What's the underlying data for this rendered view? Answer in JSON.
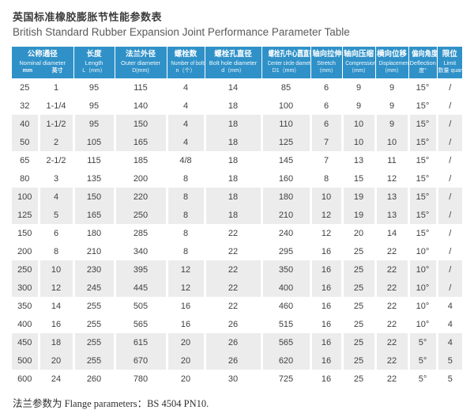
{
  "title": {
    "zh": "英国标准橡胶膨胀节性能参数表",
    "en": "British Standard Rubber Expansion Joint Performance Parameter Table"
  },
  "colors": {
    "header_bg": "#2f91c8",
    "band_gray": "#ececec",
    "text": "#3f3f3f"
  },
  "table": {
    "header": {
      "group": {
        "zh": "公称通径",
        "en": "Nominal diameter",
        "subs": [
          "mm",
          "英寸"
        ]
      },
      "columns": [
        {
          "zh": "长度",
          "en": "Length",
          "sub": "L（mm）"
        },
        {
          "zh": "法兰外径",
          "en": "Outer diameter",
          "sub": "D(mm)"
        },
        {
          "zh": "螺栓数",
          "en": "Number of bolts",
          "sub": "n（个）"
        },
        {
          "zh": "螺栓孔直径",
          "en": "Bolt hole diameter",
          "sub": "d（mm）"
        },
        {
          "zh": "螺栓孔中心圆直径",
          "en": "Center circle diameter",
          "sub": "D1（mm）"
        },
        {
          "zh": "轴向拉伸",
          "en": "Stretch",
          "sub": "（mm）"
        },
        {
          "zh": "轴向压缩",
          "en": "Compression",
          "sub": "（mm）"
        },
        {
          "zh": "横向位移",
          "en": "Displacement",
          "sub": "（mm）"
        },
        {
          "zh": "偏向角度",
          "en": "Deflection",
          "sub": "度°"
        },
        {
          "zh": "限位",
          "en": "Limit",
          "sub": "数量 quantity"
        }
      ]
    },
    "rows": [
      [
        "25",
        "1",
        "95",
        "115",
        "4",
        "14",
        "85",
        "6",
        "9",
        "9",
        "15°",
        "/"
      ],
      [
        "32",
        "1-1/4",
        "95",
        "140",
        "4",
        "18",
        "100",
        "6",
        "9",
        "9",
        "15°",
        "/"
      ],
      [
        "40",
        "1-1/2",
        "95",
        "150",
        "4",
        "18",
        "110",
        "6",
        "10",
        "9",
        "15°",
        "/"
      ],
      [
        "50",
        "2",
        "105",
        "165",
        "4",
        "18",
        "125",
        "7",
        "10",
        "10",
        "15°",
        "/"
      ],
      [
        "65",
        "2-1/2",
        "115",
        "185",
        "4/8",
        "18",
        "145",
        "7",
        "13",
        "11",
        "15°",
        "/"
      ],
      [
        "80",
        "3",
        "135",
        "200",
        "8",
        "18",
        "160",
        "8",
        "15",
        "12",
        "15°",
        "/"
      ],
      [
        "100",
        "4",
        "150",
        "220",
        "8",
        "18",
        "180",
        "10",
        "19",
        "13",
        "15°",
        "/"
      ],
      [
        "125",
        "5",
        "165",
        "250",
        "8",
        "18",
        "210",
        "12",
        "19",
        "13",
        "15°",
        "/"
      ],
      [
        "150",
        "6",
        "180",
        "285",
        "8",
        "22",
        "240",
        "12",
        "20",
        "14",
        "15°",
        "/"
      ],
      [
        "200",
        "8",
        "210",
        "340",
        "8",
        "22",
        "295",
        "16",
        "25",
        "22",
        "10°",
        "/"
      ],
      [
        "250",
        "10",
        "230",
        "395",
        "12",
        "22",
        "350",
        "16",
        "25",
        "22",
        "10°",
        "/"
      ],
      [
        "300",
        "12",
        "245",
        "445",
        "12",
        "22",
        "400",
        "16",
        "25",
        "22",
        "10°",
        "/"
      ],
      [
        "350",
        "14",
        "255",
        "505",
        "16",
        "22",
        "460",
        "16",
        "25",
        "22",
        "10°",
        "4"
      ],
      [
        "400",
        "16",
        "255",
        "565",
        "16",
        "26",
        "515",
        "16",
        "25",
        "22",
        "10°",
        "4"
      ],
      [
        "450",
        "18",
        "255",
        "615",
        "20",
        "26",
        "565",
        "16",
        "25",
        "22",
        "5°",
        "4"
      ],
      [
        "500",
        "20",
        "255",
        "670",
        "20",
        "26",
        "620",
        "16",
        "25",
        "22",
        "5°",
        "5"
      ],
      [
        "600",
        "24",
        "260",
        "780",
        "20",
        "30",
        "725",
        "16",
        "25",
        "22",
        "5°",
        "5"
      ]
    ]
  },
  "footer": {
    "text": "法兰参数为 Flange parameters：BS 4504 PN10."
  }
}
